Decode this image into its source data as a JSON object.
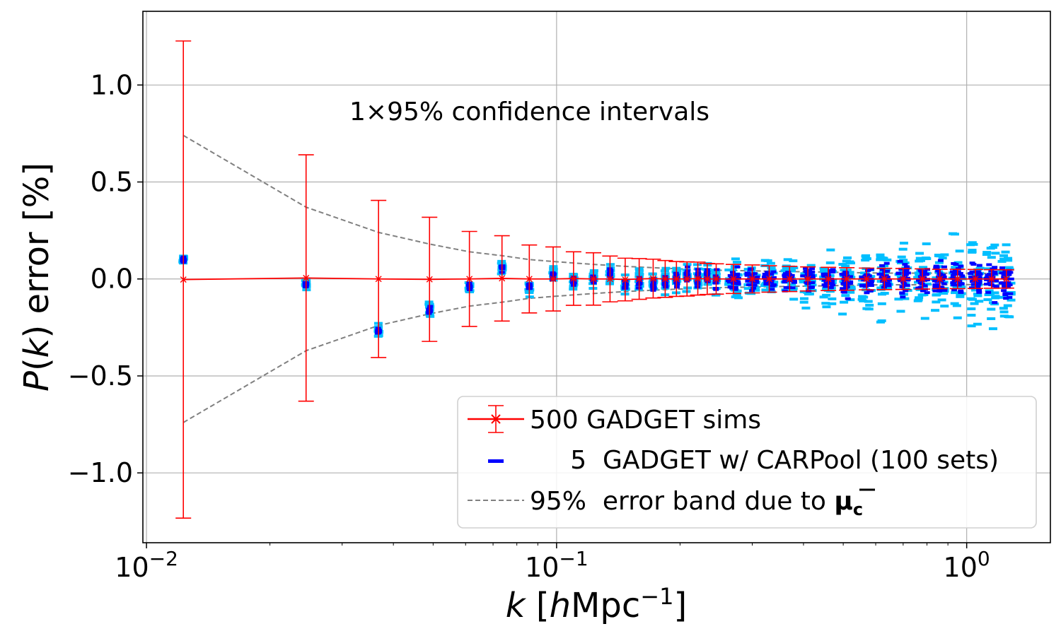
{
  "chart_data": {
    "type": "scatter",
    "x_scale": "log",
    "xlim": [
      0.0098,
      1.6
    ],
    "ylim": [
      -1.36,
      1.38
    ],
    "grid": true,
    "xlabel": "k [hMpc⁻¹]",
    "ylabel": "P(k) error  [%]",
    "annotation": "1×95% confidence intervals",
    "x_ticks": [
      {
        "value": 0.01,
        "base": "10",
        "exp": "−2"
      },
      {
        "value": 0.1,
        "base": "10",
        "exp": "−1"
      },
      {
        "value": 1,
        "base": "10",
        "exp": "0"
      }
    ],
    "y_ticks": [
      {
        "value": 1.0,
        "label": "1.0"
      },
      {
        "value": 0.5,
        "label": "0.5"
      },
      {
        "value": 0.0,
        "label": "0.0"
      },
      {
        "value": -0.5,
        "label": "−0.5"
      },
      {
        "value": -1.0,
        "label": "−1.0"
      }
    ],
    "legend_position": "lower-right",
    "legend": [
      {
        "key": "sims",
        "label": "500  GADGET sims"
      },
      {
        "key": "carpool",
        "label": "     5  GADGET w/ CARPool (100 sets)"
      },
      {
        "key": "band",
        "label": "95%  error band due to ",
        "symbol": "μ",
        "subscript": "c"
      }
    ],
    "colors": {
      "sims": "#ff0000",
      "carpool_inner": "#0000ff",
      "carpool_outer": "#00bfff",
      "band": "#808080",
      "grid": "#b0b0b0"
    },
    "series": [
      {
        "name": "500  GADGET sims",
        "x": [
          0.0123,
          0.0245,
          0.0368,
          0.049,
          0.0613,
          0.0736,
          0.0858,
          0.0981,
          0.11,
          0.123,
          0.135,
          0.147,
          0.159,
          0.172,
          0.184,
          0.196,
          0.208,
          0.221,
          0.233,
          0.245,
          0.27,
          0.3,
          0.33,
          0.37,
          0.41,
          0.46,
          0.51,
          0.57,
          0.63,
          0.7,
          0.78,
          0.86,
          0.95,
          1.05,
          1.15,
          1.25
        ],
        "y": [
          -0.003,
          0.005,
          0.0,
          -0.002,
          0.0,
          0.003,
          0.0,
          0.0,
          0.002,
          0.0,
          0.0,
          -0.003,
          0.0,
          0.002,
          0.0,
          0.0,
          0.0,
          0.002,
          0.0,
          0.0,
          0.0,
          0.0,
          0.0,
          0.0,
          0.0,
          0.0,
          0.0,
          0.0,
          0.0,
          0.0,
          0.0,
          0.0,
          0.0,
          0.0,
          0.0,
          0.0
        ],
        "err": [
          1.23,
          0.635,
          0.405,
          0.32,
          0.245,
          0.22,
          0.175,
          0.165,
          0.138,
          0.135,
          0.118,
          0.11,
          0.105,
          0.1,
          0.095,
          0.09,
          0.088,
          0.085,
          0.08,
          0.078,
          0.075,
          0.072,
          0.068,
          0.065,
          0.062,
          0.06,
          0.058,
          0.056,
          0.055,
          0.054,
          0.052,
          0.05,
          0.05,
          0.049,
          0.048,
          0.047
        ]
      },
      {
        "name": "5  GADGET w/ CARPool (100 sets)",
        "x": [
          0.0123,
          0.0245,
          0.0368,
          0.049,
          0.0613,
          0.0736,
          0.0858,
          0.0981,
          0.11,
          0.123,
          0.135,
          0.147,
          0.159,
          0.172,
          0.184,
          0.196,
          0.208,
          0.221,
          0.233,
          0.245,
          0.27,
          0.3,
          0.33,
          0.37,
          0.41,
          0.46,
          0.51,
          0.57,
          0.63,
          0.7,
          0.78,
          0.86,
          0.95,
          1.05,
          1.15,
          1.25
        ],
        "center": [
          0.1,
          -0.03,
          -0.27,
          -0.16,
          -0.04,
          0.06,
          -0.04,
          0.02,
          -0.01,
          0.0,
          0.03,
          -0.03,
          -0.02,
          -0.03,
          -0.01,
          0.0,
          0.02,
          0.0,
          0.02,
          0.0,
          0.0,
          0.0,
          0.0,
          0.0,
          0.0,
          0.0,
          0.0,
          0.0,
          0.0,
          0.0,
          0.0,
          0.0,
          0.0,
          0.0,
          0.0,
          0.0
        ],
        "inner_spread": [
          0.02,
          0.015,
          0.02,
          0.02,
          0.02,
          0.02,
          0.025,
          0.03,
          0.03,
          0.03,
          0.035,
          0.035,
          0.04,
          0.04,
          0.04,
          0.045,
          0.045,
          0.05,
          0.05,
          0.05,
          0.055,
          0.06,
          0.06,
          0.065,
          0.07,
          0.07,
          0.075,
          0.08,
          0.08,
          0.085,
          0.09,
          0.095,
          0.1,
          0.1,
          0.11,
          0.11
        ],
        "outer_spread": [
          0.045,
          0.04,
          0.045,
          0.05,
          0.05,
          0.05,
          0.055,
          0.06,
          0.065,
          0.07,
          0.075,
          0.08,
          0.08,
          0.085,
          0.09,
          0.095,
          0.1,
          0.1,
          0.1,
          0.11,
          0.11,
          0.12,
          0.13,
          0.14,
          0.15,
          0.17,
          0.18,
          0.2,
          0.21,
          0.22,
          0.23,
          0.25,
          0.27,
          0.28,
          0.29,
          0.3
        ]
      },
      {
        "name": "95%  error band due to μ̅c",
        "x": [
          0.0123,
          0.0245,
          0.0368,
          0.049,
          0.0613,
          0.0736,
          0.0858,
          0.0981,
          0.123,
          0.147,
          0.184,
          0.245,
          0.33,
          0.46,
          0.63,
          0.86,
          1.25
        ],
        "upper": [
          0.74,
          0.37,
          0.24,
          0.18,
          0.14,
          0.12,
          0.1,
          0.09,
          0.075,
          0.065,
          0.055,
          0.045,
          0.04,
          0.035,
          0.03,
          0.03,
          0.028
        ],
        "lower": [
          -0.74,
          -0.37,
          -0.24,
          -0.18,
          -0.14,
          -0.12,
          -0.1,
          -0.09,
          -0.075,
          -0.065,
          -0.055,
          -0.045,
          -0.04,
          -0.035,
          -0.03,
          -0.03,
          -0.028
        ]
      }
    ]
  }
}
